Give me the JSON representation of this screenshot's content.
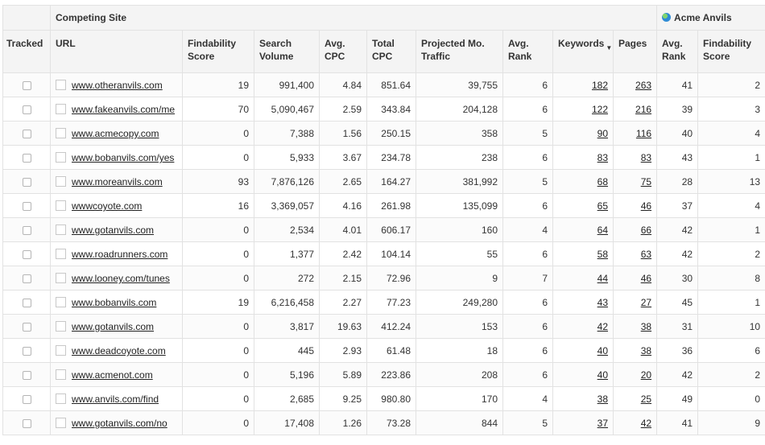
{
  "header": {
    "competing_site": "Competing Site",
    "acme_title": "Acme Anvils",
    "columns": {
      "tracked": "Tracked",
      "url": "URL",
      "findability": "Findability Score",
      "search_volume": "Search Volume",
      "avg_cpc": "Avg. CPC",
      "total_cpc": "Total CPC",
      "projected_traffic": "Projected Mo. Traffic",
      "avg_rank": "Avg. Rank",
      "keywords": "Keywords",
      "keywords_sort_indicator": "▼",
      "pages": "Pages",
      "acme_avg_rank": "Avg. Rank",
      "acme_findability": "Findability Score"
    }
  },
  "rows": [
    {
      "url": "www.otheranvils.com",
      "findability": "19",
      "search_volume": "991,400",
      "avg_cpc": "4.84",
      "total_cpc": "851.64",
      "traffic": "39,755",
      "avg_rank": "6",
      "keywords": "182",
      "pages": "263",
      "acme_rank": "41",
      "acme_findability": "2"
    },
    {
      "url": "www.fakeanvils.com/me",
      "findability": "70",
      "search_volume": "5,090,467",
      "avg_cpc": "2.59",
      "total_cpc": "343.84",
      "traffic": "204,128",
      "avg_rank": "6",
      "keywords": "122",
      "pages": "216",
      "acme_rank": "39",
      "acme_findability": "3"
    },
    {
      "url": "www.acmecopy.com",
      "findability": "0",
      "search_volume": "7,388",
      "avg_cpc": "1.56",
      "total_cpc": "250.15",
      "traffic": "358",
      "avg_rank": "5",
      "keywords": "90",
      "pages": "116",
      "acme_rank": "40",
      "acme_findability": "4"
    },
    {
      "url": "www.bobanvils.com/yes",
      "findability": "0",
      "search_volume": "5,933",
      "avg_cpc": "3.67",
      "total_cpc": "234.78",
      "traffic": "238",
      "avg_rank": "6",
      "keywords": "83",
      "pages": "83",
      "acme_rank": "43",
      "acme_findability": "1"
    },
    {
      "url": "www.moreanvils.com",
      "findability": "93",
      "search_volume": "7,876,126",
      "avg_cpc": "2.65",
      "total_cpc": "164.27",
      "traffic": "381,992",
      "avg_rank": "5",
      "keywords": "68",
      "pages": "75",
      "acme_rank": "28",
      "acme_findability": "13"
    },
    {
      "url": "wwwcoyote.com",
      "findability": "16",
      "search_volume": "3,369,057",
      "avg_cpc": "4.16",
      "total_cpc": "261.98",
      "traffic": "135,099",
      "avg_rank": "6",
      "keywords": "65",
      "pages": "46",
      "acme_rank": "37",
      "acme_findability": "4"
    },
    {
      "url": "www.gotanvils.com",
      "findability": "0",
      "search_volume": "2,534",
      "avg_cpc": "4.01",
      "total_cpc": "606.17",
      "traffic": "160",
      "avg_rank": "4",
      "keywords": "64",
      "pages": "66",
      "acme_rank": "42",
      "acme_findability": "1"
    },
    {
      "url": "www.roadrunners.com",
      "findability": "0",
      "search_volume": "1,377",
      "avg_cpc": "2.42",
      "total_cpc": "104.14",
      "traffic": "55",
      "avg_rank": "6",
      "keywords": "58",
      "pages": "63",
      "acme_rank": "42",
      "acme_findability": "2"
    },
    {
      "url": "www.looney.com/tunes",
      "findability": "0",
      "search_volume": "272",
      "avg_cpc": "2.15",
      "total_cpc": "72.96",
      "traffic": "9",
      "avg_rank": "7",
      "keywords": "44",
      "pages": "46",
      "acme_rank": "30",
      "acme_findability": "8"
    },
    {
      "url": "www.bobanvils.com",
      "findability": "19",
      "search_volume": "6,216,458",
      "avg_cpc": "2.27",
      "total_cpc": "77.23",
      "traffic": "249,280",
      "avg_rank": "6",
      "keywords": "43",
      "pages": "27",
      "acme_rank": "45",
      "acme_findability": "1"
    },
    {
      "url": "www.gotanvils.com",
      "findability": "0",
      "search_volume": "3,817",
      "avg_cpc": "19.63",
      "total_cpc": "412.24",
      "traffic": "153",
      "avg_rank": "6",
      "keywords": "42",
      "pages": "38",
      "acme_rank": "31",
      "acme_findability": "10"
    },
    {
      "url": "www.deadcoyote.com",
      "findability": "0",
      "search_volume": "445",
      "avg_cpc": "2.93",
      "total_cpc": "61.48",
      "traffic": "18",
      "avg_rank": "6",
      "keywords": "40",
      "pages": "38",
      "acme_rank": "36",
      "acme_findability": "6"
    },
    {
      "url": "www.acmenot.com",
      "findability": "0",
      "search_volume": "5,196",
      "avg_cpc": "5.89",
      "total_cpc": "223.86",
      "traffic": "208",
      "avg_rank": "6",
      "keywords": "40",
      "pages": "20",
      "acme_rank": "42",
      "acme_findability": "2"
    },
    {
      "url": "www.anvils.com/find",
      "findability": "0",
      "search_volume": "2,685",
      "avg_cpc": "9.25",
      "total_cpc": "980.80",
      "traffic": "170",
      "avg_rank": "4",
      "keywords": "38",
      "pages": "25",
      "acme_rank": "49",
      "acme_findability": "0"
    },
    {
      "url": "www.gotanvils.com/no",
      "findability": "0",
      "search_volume": "17,408",
      "avg_cpc": "1.26",
      "total_cpc": "73.28",
      "traffic": "844",
      "avg_rank": "5",
      "keywords": "37",
      "pages": "42",
      "acme_rank": "41",
      "acme_findability": "9"
    }
  ]
}
